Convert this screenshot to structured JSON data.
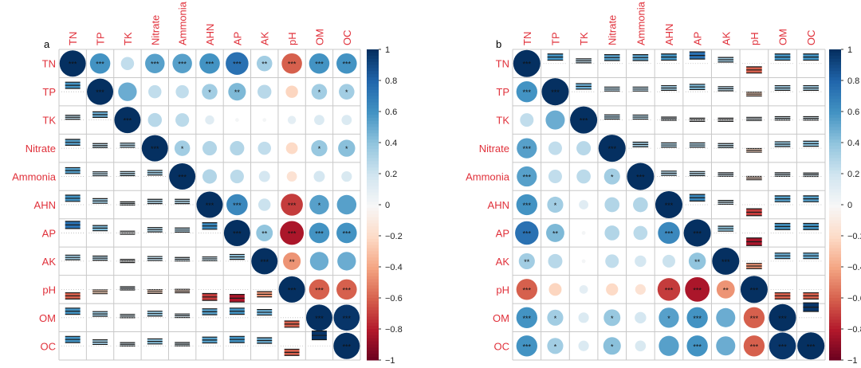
{
  "chart_data": {
    "type": "heatmap",
    "variables": [
      "TN",
      "TP",
      "TK",
      "Nitrate",
      "Ammonia",
      "AHN",
      "AP",
      "AK",
      "pH",
      "OM",
      "OC"
    ],
    "colorbar": {
      "range": [
        -1,
        1
      ],
      "ticks": [
        "1",
        "0.8",
        "0.6",
        "0.4",
        "0.2",
        "0",
        "−0.2",
        "−0.4",
        "−0.6",
        "−0.8",
        "−1"
      ]
    },
    "colors": {
      "label": "#e0303a",
      "neg_end": "#67001F",
      "mid": "#F7F7F7",
      "pos_end": "#053061"
    },
    "r": [
      [
        1,
        0.6,
        0.25,
        0.55,
        0.55,
        0.6,
        0.75,
        0.35,
        -0.6,
        0.6,
        0.6
      ],
      [
        0.6,
        1,
        0.5,
        0.25,
        0.25,
        0.35,
        0.45,
        0.28,
        -0.22,
        0.35,
        0.35
      ],
      [
        0.25,
        0.5,
        1,
        0.28,
        0.27,
        0.12,
        0.02,
        0.02,
        0.1,
        0.15,
        0.15
      ],
      [
        0.55,
        0.25,
        0.28,
        1,
        0.35,
        0.3,
        0.3,
        0.25,
        -0.2,
        0.38,
        0.42
      ],
      [
        0.55,
        0.25,
        0.27,
        0.35,
        1,
        0.3,
        0.27,
        0.18,
        -0.15,
        0.18,
        0.16
      ],
      [
        0.6,
        0.35,
        0.12,
        0.3,
        0.3,
        1,
        0.65,
        0.22,
        -0.7,
        0.55,
        0.55
      ],
      [
        0.75,
        0.45,
        0.02,
        0.3,
        0.27,
        0.65,
        1,
        0.4,
        -0.82,
        0.6,
        0.6
      ],
      [
        0.35,
        0.28,
        0.02,
        0.25,
        0.18,
        0.22,
        0.4,
        1,
        -0.45,
        0.5,
        0.5
      ],
      [
        -0.6,
        -0.22,
        0.1,
        -0.2,
        -0.15,
        -0.7,
        -0.82,
        -0.45,
        1,
        -0.6,
        -0.6
      ],
      [
        0.6,
        0.35,
        0.15,
        0.38,
        0.18,
        0.55,
        0.6,
        0.5,
        -0.6,
        1,
        0.98
      ],
      [
        0.6,
        0.35,
        0.15,
        0.42,
        0.16,
        0.55,
        0.6,
        0.5,
        -0.6,
        0.98,
        1
      ]
    ],
    "sig": [
      [
        "***",
        "***",
        "",
        "***",
        "***",
        "***",
        "***",
        "**",
        "***",
        "***",
        "***"
      ],
      [
        "***",
        "***",
        "",
        "",
        "",
        "*",
        "**",
        "",
        "",
        "*",
        "*"
      ],
      [
        "",
        "",
        "***",
        "",
        "",
        "",
        "",
        "",
        "",
        "",
        ""
      ],
      [
        "***",
        "",
        "",
        "***",
        "*",
        "",
        "",
        "",
        "",
        "*",
        "*"
      ],
      [
        "***",
        "",
        "",
        "*",
        "***",
        "",
        "",
        "",
        "",
        "",
        ""
      ],
      [
        "***",
        "*",
        "",
        "",
        "",
        "***",
        "***",
        "",
        "***",
        "*",
        ""
      ],
      [
        "***",
        "**",
        "",
        "",
        "",
        "***",
        "***",
        "**",
        "***",
        "***",
        "***"
      ],
      [
        "**",
        "",
        "",
        "",
        "",
        "",
        "**",
        "***",
        "**",
        "",
        ""
      ],
      [
        "***",
        "",
        "",
        "",
        "",
        "***",
        "***",
        "**",
        "***",
        "***",
        "***"
      ],
      [
        "***",
        "*",
        "",
        "*",
        "",
        "*",
        "***",
        "",
        "***",
        "***",
        "***"
      ],
      [
        "***",
        "*",
        "",
        "*",
        "",
        "",
        "***",
        "",
        "***",
        "***",
        "***"
      ]
    ],
    "panels": [
      {
        "label": "a",
        "circles": "upper",
        "intervals": "lower"
      },
      {
        "label": "b",
        "circles": "lower",
        "intervals": "upper"
      }
    ]
  }
}
